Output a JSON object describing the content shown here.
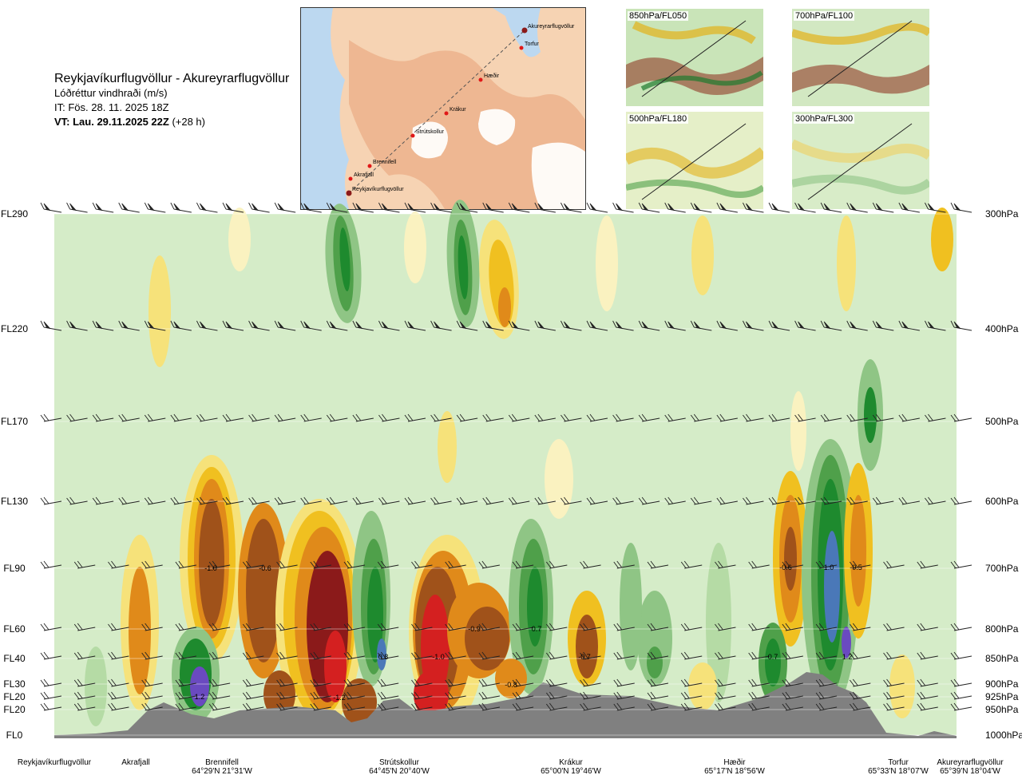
{
  "header": {
    "route": "Reykjavíkurflugvöllur - Akureyrarflugvöllur",
    "variable": "Lóðréttur vindhraði (m/s)",
    "issue_time": "IT: Fös. 28. 11. 2025 18Z",
    "valid_time_bold": "VT: Lau. 29.11.2025 22Z",
    "lead": "(+28 h)"
  },
  "route_map": {
    "points": [
      {
        "name": "Akureyrarflugvöllur"
      },
      {
        "name": "Torfur"
      },
      {
        "name": "Hæðir"
      },
      {
        "name": "Krákur"
      },
      {
        "name": "Strútskollur"
      },
      {
        "name": "Brennifell"
      },
      {
        "name": "Akrafjall"
      },
      {
        "name": "Reykjavíkurflugvöllur"
      }
    ]
  },
  "panels": [
    {
      "label": "850hPa/FL050"
    },
    {
      "label": "700hPa/FL100"
    },
    {
      "label": "500hPa/FL180"
    },
    {
      "label": "300hPa/FL300"
    }
  ],
  "chart_data": {
    "type": "heatmap",
    "title": "Lóðréttur vindhraði (m/s)",
    "y_levels": [
      {
        "fl": "FL290",
        "hpa": "300hPa"
      },
      {
        "fl": "FL220",
        "hpa": "400hPa"
      },
      {
        "fl": "FL170",
        "hpa": "500hPa"
      },
      {
        "fl": "FL130",
        "hpa": "600hPa"
      },
      {
        "fl": "FL90",
        "hpa": "700hPa"
      },
      {
        "fl": "FL60",
        "hpa": "800hPa"
      },
      {
        "fl": "FL40",
        "hpa": "850hPa"
      },
      {
        "fl": "FL30",
        "hpa": "900hPa"
      },
      {
        "fl": "FL20",
        "hpa": "925hPa"
      },
      {
        "fl": "FL20",
        "hpa": "950hPa"
      },
      {
        "fl": "FL0",
        "hpa": "1000hPa"
      }
    ],
    "x_locations": [
      {
        "name": "Reykjavíkurflugvöllur",
        "coord": ""
      },
      {
        "name": "Akrafjall",
        "coord": ""
      },
      {
        "name": "Brennifell",
        "coord": "64°29'N 21°31'W"
      },
      {
        "name": "Strútskollur",
        "coord": "64°45'N 20°40'W"
      },
      {
        "name": "Krákur",
        "coord": "65°00'N 19°46'W"
      },
      {
        "name": "Hæðir",
        "coord": "65°17'N 18°56'W"
      },
      {
        "name": "Torfur",
        "coord": "65°33'N 18°07'W"
      },
      {
        "name": "Akureyrarflugvöllur",
        "coord": "65°39'N 18°04'W"
      }
    ],
    "annotations": [
      "1.2",
      "-1.0",
      "-0.6",
      "-1.2",
      "0.8",
      "-1.0",
      "-0.9",
      "0.7",
      "-0.8",
      "-0.7",
      "0.7",
      "-0.6",
      "1.0",
      "-0.5",
      "1.2"
    ],
    "colors": {
      "strong_down": "#8b1a1a",
      "down_red": "#d42020",
      "down_brown": "#a0521a",
      "down_orange": "#e08a1a",
      "down_gold": "#f0c020",
      "down_yellow": "#f6e27a",
      "weak_down": "#faf2c0",
      "neutral": "#d5ecc8",
      "weak_up": "#b5dba5",
      "up_light": "#8fc585",
      "up_mid": "#4fa04a",
      "up_green": "#1e8a2e",
      "up_dark": "#146c2a",
      "strong_up": "#4a78b8",
      "very_strong_up": "#6a4ac0",
      "terrain": "#808080"
    }
  }
}
